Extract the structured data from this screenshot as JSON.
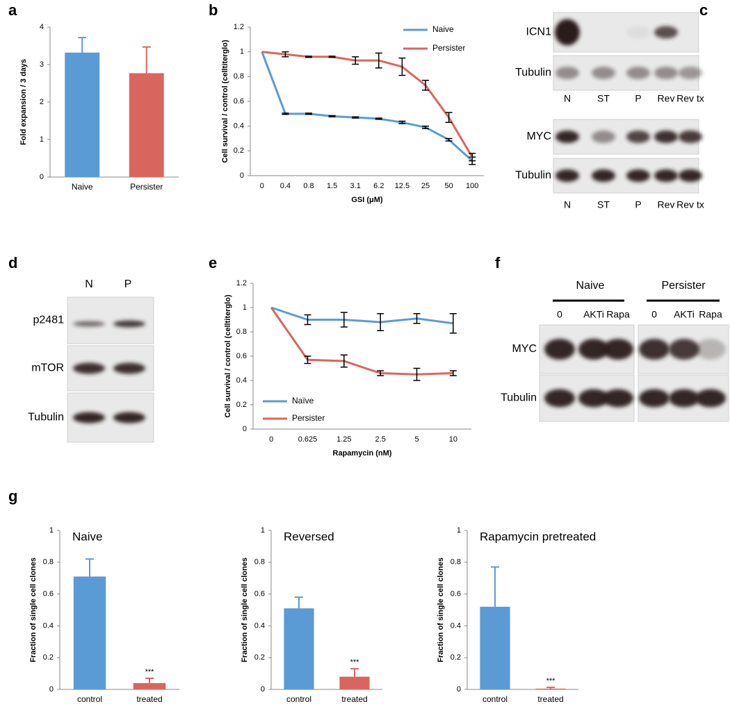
{
  "chart_data": [
    {
      "type": "bar",
      "panel": "a",
      "categories": [
        "Naive",
        "Persister"
      ],
      "values": [
        3.32,
        2.77
      ],
      "errors": [
        0.4,
        0.7
      ],
      "colors": [
        "#5b9bd5",
        "#d9665e"
      ],
      "ylabel": "Fold expansion / 3 days",
      "ylim": [
        0,
        4
      ],
      "yticks": [
        0,
        1,
        2,
        3,
        4
      ]
    },
    {
      "type": "line",
      "panel": "b",
      "categories": [
        "0",
        "0.4",
        "0.8",
        "1.5",
        "3.1",
        "6.2",
        "12.5",
        "25",
        "50",
        "100"
      ],
      "series": [
        {
          "name": "Naive",
          "color": "#5b9bd5",
          "values": [
            1,
            0.5,
            0.5,
            0.48,
            0.47,
            0.46,
            0.43,
            0.39,
            0.29,
            0.12
          ],
          "errors": [
            0,
            0.005,
            0.005,
            0.005,
            0.005,
            0.005,
            0.01,
            0.01,
            0.01,
            0.03
          ]
        },
        {
          "name": "Persister",
          "color": "#d9665e",
          "values": [
            1,
            0.98,
            0.96,
            0.96,
            0.93,
            0.93,
            0.88,
            0.73,
            0.47,
            0.15
          ],
          "errors": [
            0,
            0.02,
            0.005,
            0.005,
            0.03,
            0.06,
            0.07,
            0.04,
            0.04,
            0.03
          ]
        }
      ],
      "xlabel": "GSI (μM)",
      "ylabel": "Cell survival / control (celltiterglo)",
      "ylim": [
        0,
        1.2
      ],
      "yticks": [
        0,
        0.2,
        0.4,
        0.6,
        0.8,
        1,
        1.2
      ],
      "legend": "top-right"
    },
    {
      "type": "line",
      "panel": "e",
      "categories": [
        "0",
        "0.625",
        "1.25",
        "2.5",
        "5",
        "10"
      ],
      "series": [
        {
          "name": "Naïve",
          "color": "#5b9bd5",
          "values": [
            1,
            0.9,
            0.9,
            0.88,
            0.91,
            0.87
          ],
          "errors": [
            0,
            0.04,
            0.06,
            0.07,
            0.04,
            0.08
          ]
        },
        {
          "name": "Persister",
          "color": "#d9665e",
          "values": [
            1,
            0.57,
            0.56,
            0.46,
            0.45,
            0.46
          ],
          "errors": [
            0,
            0.03,
            0.05,
            0.02,
            0.05,
            0.02
          ]
        }
      ],
      "xlabel": "Rapamycin (nM)",
      "ylabel": "Cell survival / control (celltiterglo)",
      "ylim": [
        0,
        1.2
      ],
      "yticks": [
        0,
        0.2,
        0.4,
        0.6,
        0.8,
        1,
        1.2
      ],
      "legend": "bottom-left"
    },
    {
      "type": "bar",
      "panel": "g",
      "title": "Naive",
      "categories": [
        "control",
        "treated"
      ],
      "values": [
        0.71,
        0.04
      ],
      "errors": [
        0.11,
        0.03
      ],
      "annotations": [
        null,
        "***"
      ],
      "colors": [
        "#5b9bd5",
        "#d9665e"
      ],
      "ylabel": "Fraction of single cell clones",
      "ylim": [
        0,
        1
      ],
      "yticks": [
        0,
        0.2,
        0.4,
        0.6,
        0.8,
        1
      ]
    },
    {
      "type": "bar",
      "title": "Reversed",
      "categories": [
        "control",
        "treated"
      ],
      "values": [
        0.51,
        0.08
      ],
      "errors": [
        0.07,
        0.05
      ],
      "annotations": [
        null,
        "***"
      ],
      "colors": [
        "#5b9bd5",
        "#d9665e"
      ],
      "ylabel": "Fraction of single cell clones",
      "ylim": [
        0,
        1
      ],
      "yticks": [
        0,
        0.2,
        0.4,
        0.6,
        0.8,
        1
      ]
    },
    {
      "type": "bar",
      "title": "Rapamycin pretreated",
      "categories": [
        "control",
        "treated"
      ],
      "values": [
        0.52,
        0.005
      ],
      "errors": [
        0.25,
        0.008
      ],
      "annotations": [
        null,
        "***"
      ],
      "colors": [
        "#5b9bd5",
        "#d9665e"
      ],
      "ylabel": "Fraction of single cell clones",
      "ylim": [
        0,
        1
      ],
      "yticks": [
        0,
        0.2,
        0.4,
        0.6,
        0.8,
        1
      ]
    }
  ],
  "blots": [
    {
      "panel": "c",
      "groups": [
        {
          "rows": [
            "ICN1",
            "Tubulin"
          ],
          "lanes": [
            "N",
            "ST",
            "P",
            "Rev",
            "Rev tx"
          ]
        },
        {
          "rows": [
            "MYC",
            "Tubulin"
          ],
          "lanes": [
            "N",
            "ST",
            "P",
            "Rev",
            "Rev tx"
          ]
        }
      ]
    },
    {
      "panel": "d",
      "lanes": [
        "N",
        "P"
      ],
      "rows": [
        "p2481",
        "mTOR",
        "Tubulin"
      ]
    },
    {
      "panel": "f",
      "conditions": [
        {
          "name": "Naive",
          "lanes": [
            "0",
            "AKTi",
            "Rapa"
          ]
        },
        {
          "name": "Persister",
          "lanes": [
            "0",
            "AKTi",
            "Rapa"
          ]
        }
      ],
      "rows": [
        "MYC",
        "Tubulin"
      ]
    }
  ]
}
